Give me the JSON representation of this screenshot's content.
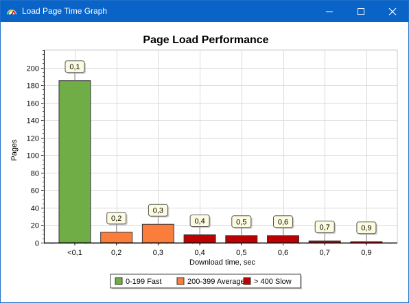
{
  "window": {
    "title": "Load Page Time Graph",
    "icon": "speedometer-icon",
    "controls": [
      "minimize-icon",
      "maximize-icon",
      "close-icon"
    ]
  },
  "colors": {
    "titlebar": "#0a64c8",
    "fast": "#70ad47",
    "average": "#fb7d3c",
    "slow": "#c00000",
    "label_box": "#fcfbe0"
  },
  "chart_data": {
    "type": "bar",
    "title": "Page Load Performance",
    "xlabel": "Download time, sec",
    "ylabel": "Pages",
    "categories": [
      "<0,1",
      "0,2",
      "0,3",
      "0,4",
      "0,5",
      "0,6",
      "0,7",
      "0,9"
    ],
    "values": [
      185,
      12,
      21,
      9,
      8,
      8,
      2,
      1
    ],
    "data_labels": [
      "0,1",
      "0,2",
      "0,3",
      "0,4",
      "0,5",
      "0,6",
      "0,7",
      "0,9"
    ],
    "bar_groups": [
      "fast",
      "average",
      "average",
      "slow",
      "slow",
      "slow",
      "slow",
      "slow"
    ],
    "ylim": [
      0,
      220
    ],
    "yticks": [
      0,
      20,
      40,
      60,
      80,
      100,
      120,
      140,
      160,
      180,
      200
    ],
    "grid": true,
    "legend": [
      {
        "key": "fast",
        "label": "0-199 Fast"
      },
      {
        "key": "average",
        "label": "200-399 Average"
      },
      {
        "key": "slow",
        "label": "> 400 Slow"
      }
    ],
    "legend_position": "bottom"
  }
}
